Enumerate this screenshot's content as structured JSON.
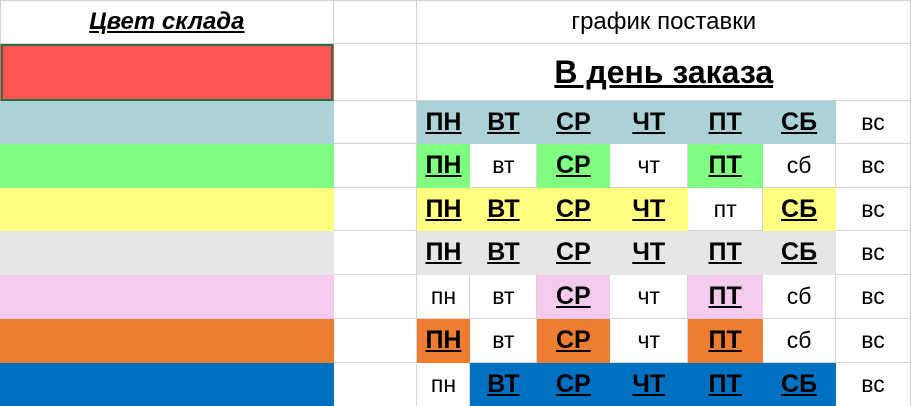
{
  "header": {
    "warehouse_color": "Цвет склада",
    "schedule": "график поставки",
    "order_day": "В день заказа"
  },
  "rows": [
    {
      "color": "#ff5555",
      "days": null
    },
    {
      "color": "#abd3d7",
      "days": [
        [
          "ПН",
          1
        ],
        [
          "ВТ",
          1
        ],
        [
          "СР",
          1
        ],
        [
          "ЧТ",
          1
        ],
        [
          "ПТ",
          1
        ],
        [
          "СБ",
          1
        ],
        [
          "вс",
          0
        ]
      ]
    },
    {
      "color": "#80ff80",
      "days": [
        [
          "ПН",
          1
        ],
        [
          "вт",
          0
        ],
        [
          "СР",
          1
        ],
        [
          "чт",
          0
        ],
        [
          "ПТ",
          1
        ],
        [
          "сб",
          0
        ],
        [
          "вс",
          0
        ]
      ]
    },
    {
      "color": "#ffff80",
      "days": [
        [
          "ПН",
          1
        ],
        [
          "ВТ",
          1
        ],
        [
          "СР",
          1
        ],
        [
          "ЧТ",
          1
        ],
        [
          "пт",
          0
        ],
        [
          "СБ",
          1
        ],
        [
          "вс",
          0
        ]
      ]
    },
    {
      "color": "#e6e6e6",
      "days": [
        [
          "ПН",
          1
        ],
        [
          "ВТ",
          1
        ],
        [
          "СР",
          1
        ],
        [
          "ЧТ",
          1
        ],
        [
          "ПТ",
          1
        ],
        [
          "СБ",
          1
        ],
        [
          "вс",
          0
        ]
      ]
    },
    {
      "color": "#f4cbec",
      "days": [
        [
          "пн",
          0
        ],
        [
          "вт",
          0
        ],
        [
          "СР",
          1
        ],
        [
          "чт",
          0
        ],
        [
          "ПТ",
          1
        ],
        [
          "сб",
          0
        ],
        [
          "вс",
          0
        ]
      ]
    },
    {
      "color": "#ed7d31",
      "days": [
        [
          "ПН",
          1
        ],
        [
          "вт",
          0
        ],
        [
          "СР",
          1
        ],
        [
          "чт",
          0
        ],
        [
          "ПТ",
          1
        ],
        [
          "сб",
          0
        ],
        [
          "вс",
          0
        ]
      ]
    },
    {
      "color": "#0070c0",
      "days": [
        [
          "пн",
          0
        ],
        [
          "ВТ",
          1
        ],
        [
          "СР",
          1
        ],
        [
          "ЧТ",
          1
        ],
        [
          "ПТ",
          1
        ],
        [
          "СБ",
          1
        ],
        [
          "вс",
          0
        ]
      ]
    }
  ]
}
